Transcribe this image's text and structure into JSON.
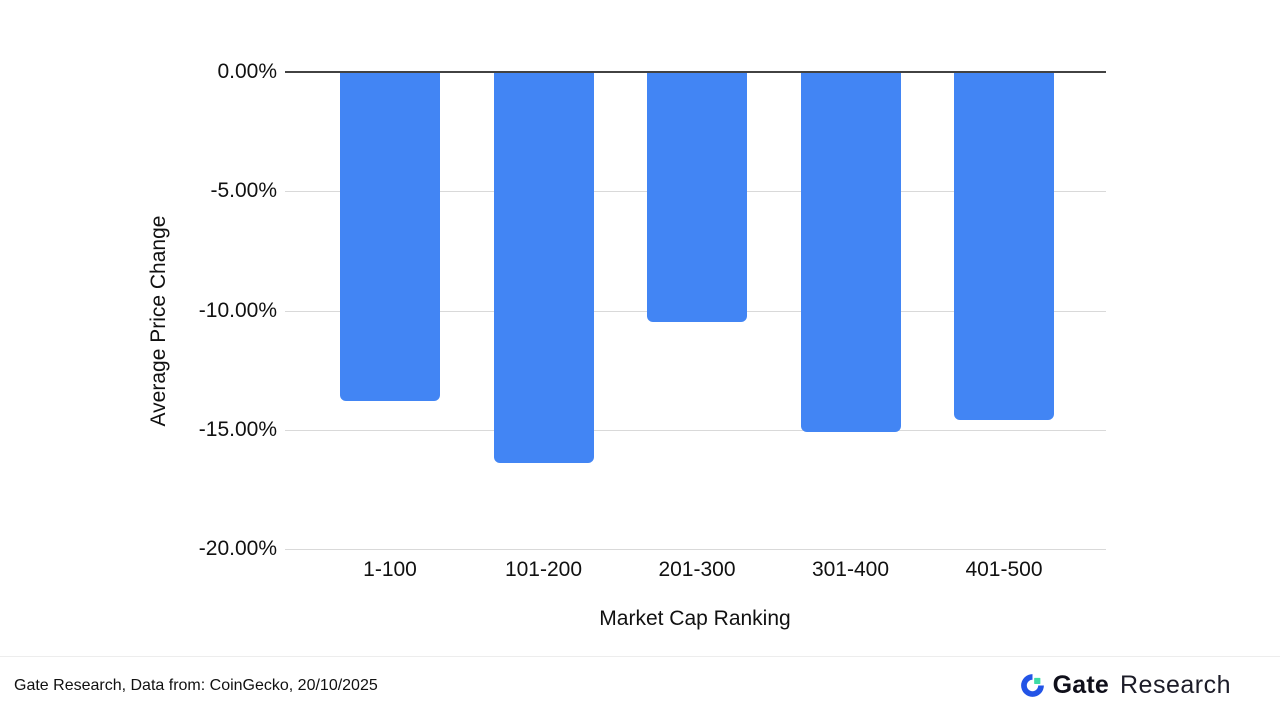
{
  "chart_data": {
    "type": "bar",
    "title": "",
    "categories": [
      "1-100",
      "101-200",
      "201-300",
      "301-400",
      "401-500"
    ],
    "values": [
      -13.8,
      -16.4,
      -10.5,
      -15.1,
      -14.6
    ],
    "xlabel": "Market Cap Ranking",
    "ylabel": "Average Price Change",
    "ylim": [
      -20,
      0
    ],
    "y_ticks": [
      "0.00%",
      "-5.00%",
      "-10.00%",
      "-15.00%",
      "-20.00%"
    ],
    "grid": true,
    "legend": "none",
    "bar_color": "#4285F4",
    "gridline_color": "#d9d9d9",
    "zero_line_color": "#424242"
  },
  "footer": {
    "source_text": "Gate Research, Data from: CoinGecko, 20/10/2025",
    "brand": {
      "name_bold": "Gate",
      "name_light": "Research",
      "logo_blue": "#2354E6",
      "logo_green": "#3EDCA5"
    }
  }
}
